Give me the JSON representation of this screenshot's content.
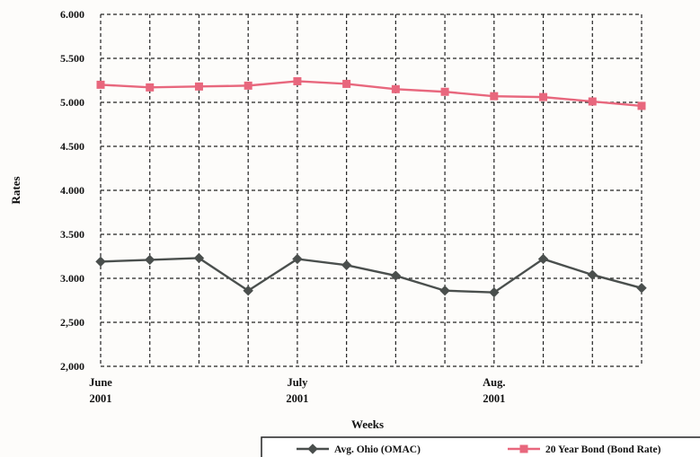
{
  "chart_data": {
    "type": "line",
    "ylabel": "Rates",
    "xlabel": "Weeks",
    "ylim": [
      2.0,
      6.0
    ],
    "y_ticks": [
      "6.000",
      "5.500",
      "5.000",
      "4.500",
      "4.000",
      "3.500",
      "3.000",
      "2,500",
      "2,000"
    ],
    "y_tick_values": [
      6.0,
      5.5,
      5.0,
      4.5,
      4.0,
      3.5,
      3.0,
      2.5,
      2.0
    ],
    "x_points": 12,
    "x_tick_labels": [
      {
        "index": 0,
        "line1": "June",
        "line2": "2001"
      },
      {
        "index": 4,
        "line1": "July",
        "line2": "2001"
      },
      {
        "index": 8,
        "line1": "Aug.",
        "line2": "2001"
      }
    ],
    "grid": true,
    "legend_position": "bottom-right",
    "series": [
      {
        "name": "Avg. Ohio (OMAC)",
        "color": "#4a4f4d",
        "marker": "diamond",
        "values": [
          3.19,
          3.21,
          3.23,
          2.86,
          3.22,
          3.15,
          3.03,
          2.86,
          2.84,
          3.22,
          3.04,
          2.89
        ]
      },
      {
        "name": "20 Year Bond (Bond Rate)",
        "color": "#e8677d",
        "marker": "square",
        "values": [
          5.2,
          5.17,
          5.18,
          5.19,
          5.24,
          5.21,
          5.15,
          5.12,
          5.07,
          5.06,
          5.01,
          4.96
        ]
      }
    ]
  }
}
